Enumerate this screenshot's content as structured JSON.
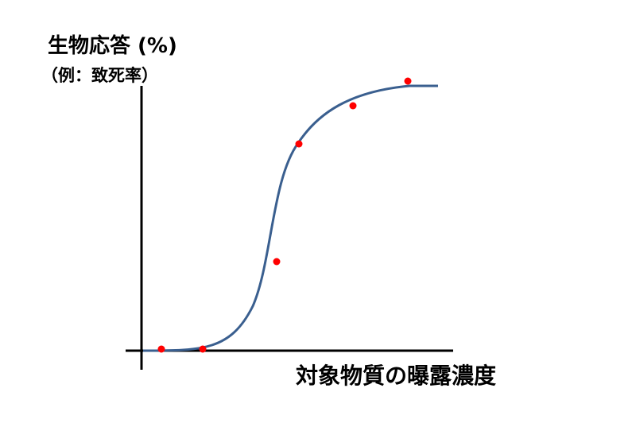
{
  "y_label": {
    "title": "生物応答 (%)",
    "note": "（例：致死率）"
  },
  "x_label": "対象物質の曝露濃度"
}
